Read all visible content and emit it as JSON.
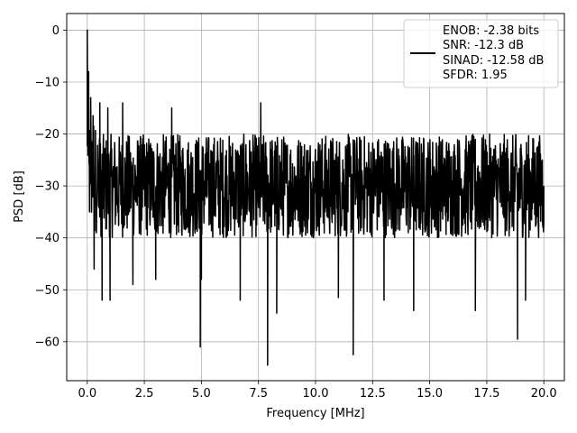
{
  "chart_data": {
    "type": "line",
    "title": "",
    "xlabel": "Frequency [MHz]",
    "ylabel": "PSD [dB]",
    "xlim": [
      -0.9,
      20.9
    ],
    "ylim": [
      -67.5,
      3.2
    ],
    "xticks": [
      0.0,
      2.5,
      5.0,
      7.5,
      10.0,
      12.5,
      15.0,
      17.5,
      20.0
    ],
    "xtick_labels": [
      "0.0",
      "2.5",
      "5.0",
      "7.5",
      "10.0",
      "12.5",
      "15.0",
      "17.5",
      "20.0"
    ],
    "yticks": [
      0,
      -10,
      -20,
      -30,
      -40,
      -50,
      -60
    ],
    "ytick_labels": [
      "0",
      "−10",
      "−20",
      "−30",
      "−40",
      "−50",
      "−60"
    ],
    "grid": true,
    "legend_position": "top-right",
    "series": [
      {
        "name": "ENOB: -2.38 bits\nSNR: -12.3 dB\nSINAD: -12.58 dB\nSFDR: 1.95",
        "legend_lines": [
          "ENOB: -2.38 bits",
          "SNR: -12.3 dB",
          "SINAD: -12.58 dB",
          "SFDR: 1.95"
        ],
        "color": "#000000",
        "noise_floor_db": -30,
        "noise_band_db": [
          -40,
          -20
        ],
        "x": [
          0.0,
          0.03,
          0.06,
          0.1,
          0.15,
          0.2,
          0.3,
          0.55,
          0.65,
          0.9,
          1.0,
          1.55,
          2.0,
          3.0,
          3.7,
          4.95,
          5.0,
          6.7,
          7.6,
          7.9,
          8.3,
          11.0,
          11.65,
          13.0,
          14.3,
          17.0,
          18.85,
          19.2,
          20.0
        ],
        "y": [
          0.0,
          -24.0,
          -8.0,
          -35.0,
          -13.0,
          -26.0,
          -46.0,
          -14.0,
          -52.0,
          -15.0,
          -52.0,
          -14.0,
          -49.0,
          -48.0,
          -15.0,
          -61.0,
          -48.0,
          -52.0,
          -14.0,
          -64.5,
          -54.5,
          -51.5,
          -62.5,
          -52.0,
          -54.0,
          -54.0,
          -59.5,
          -52.0,
          -30.0
        ]
      }
    ]
  }
}
